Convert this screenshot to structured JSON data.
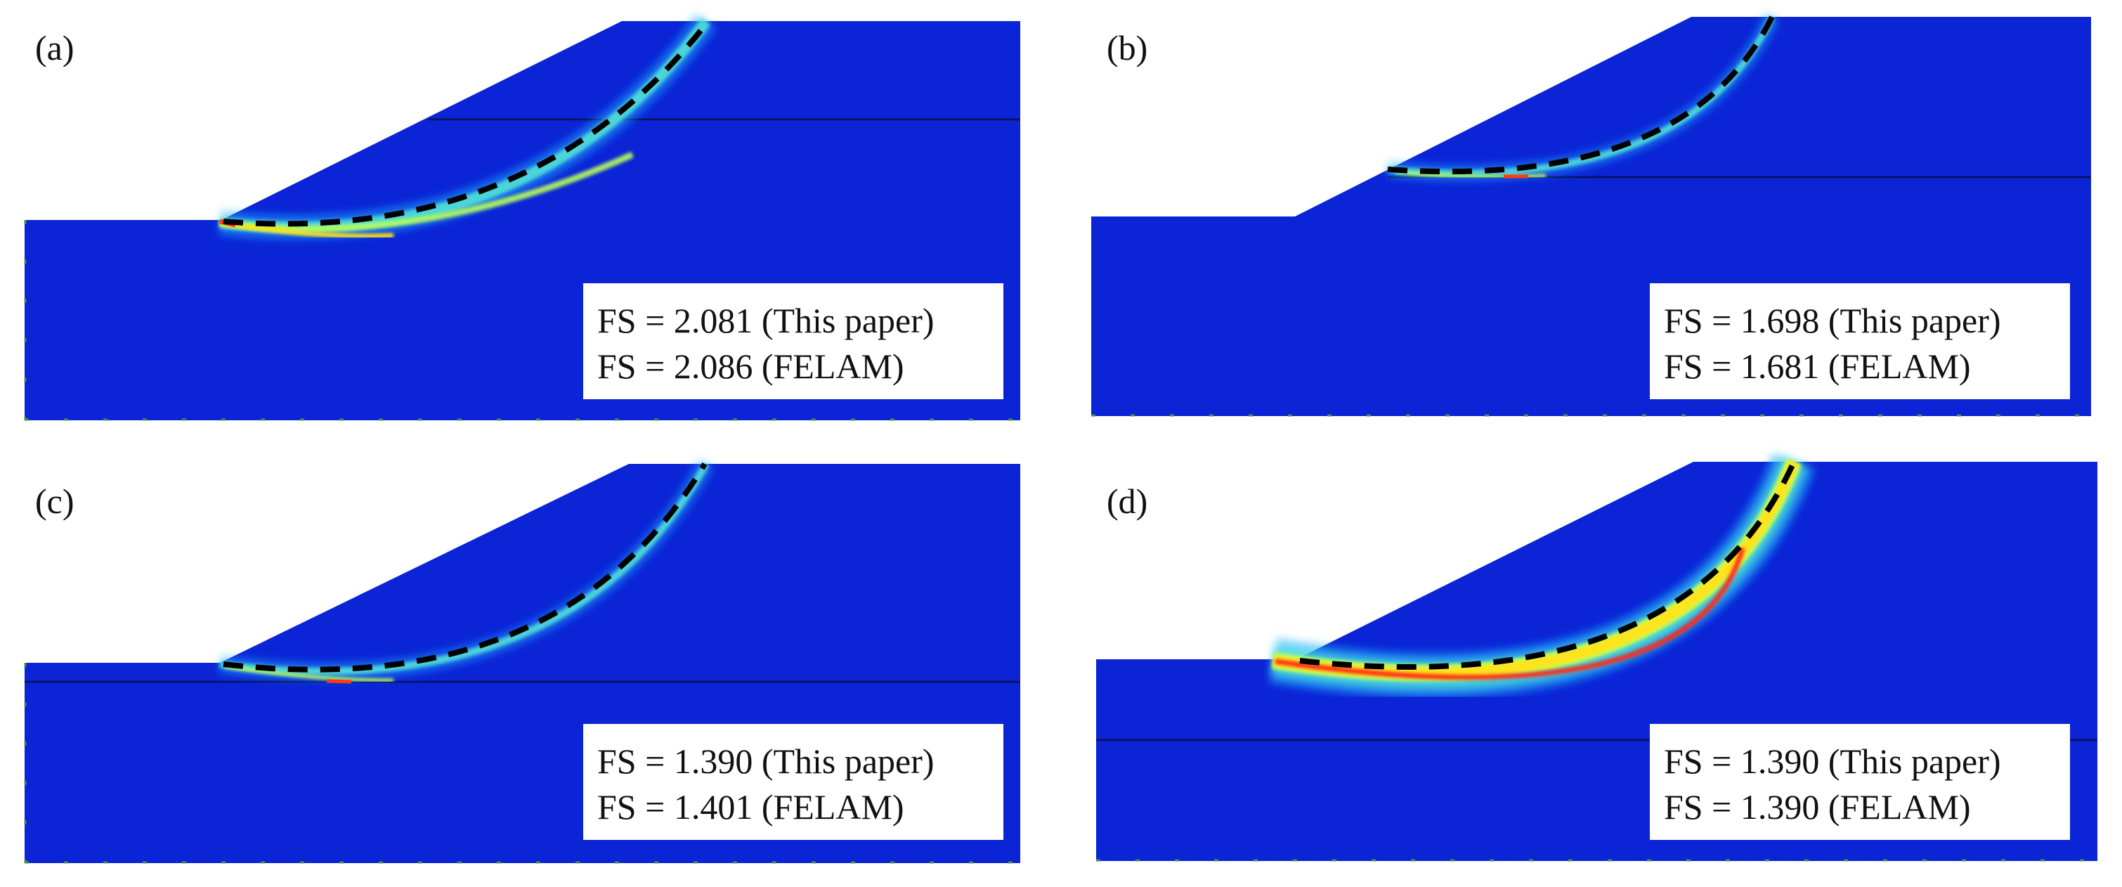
{
  "figure": {
    "panels": [
      {
        "id": "a",
        "label": "(a)",
        "fs_lines": [
          "FS = 2.081 (This paper)",
          "FS = 2.086 (FELAM)"
        ],
        "layer_lines": 1,
        "band_intensity": "medium"
      },
      {
        "id": "b",
        "label": "(b)",
        "fs_lines": [
          "FS = 1.698 (This paper)",
          "FS = 1.681 (FELAM)"
        ],
        "layer_lines": 1,
        "band_intensity": "low"
      },
      {
        "id": "c",
        "label": "(c)",
        "fs_lines": [
          "FS = 1.390 (This paper)",
          "FS = 1.401 (FELAM)"
        ],
        "layer_lines": 1,
        "band_intensity": "low"
      },
      {
        "id": "d",
        "label": "(d)",
        "fs_lines": [
          "FS = 1.390 (This paper)",
          "FS = 1.390 (FELAM)"
        ],
        "layer_lines": 1,
        "band_intensity": "high"
      }
    ],
    "colors": {
      "soil": "#0a24d6",
      "band_outer": "#23b7ff",
      "band_mid": "#7dff6a",
      "band_hot": "#ffe31a",
      "band_core": "#ff2a12",
      "curve": "#000000"
    }
  }
}
